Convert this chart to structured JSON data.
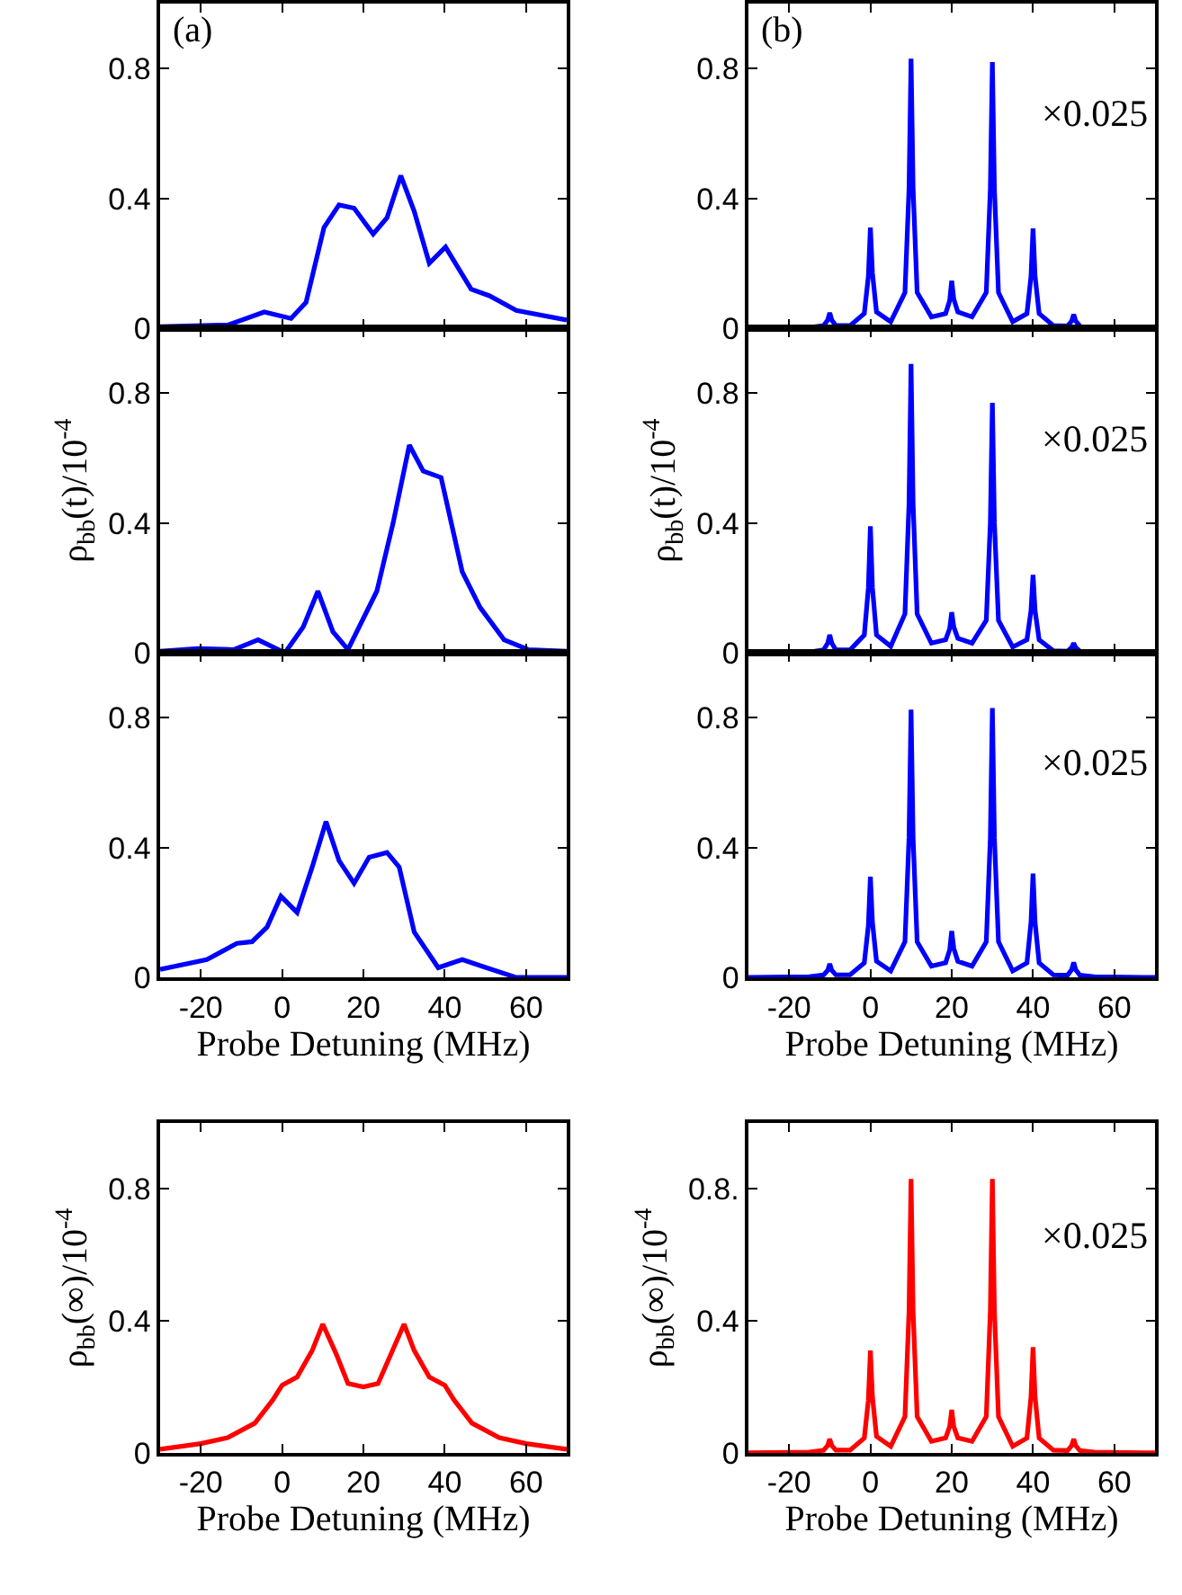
{
  "chart_data": [
    {
      "type": "line",
      "x": [
        -30,
        -13.3,
        -4.4,
        2.2,
        5.9,
        10.3,
        14.0,
        17.7,
        22.4,
        25.8,
        29.2,
        32.5,
        36.2,
        40.2,
        46.5,
        51.0,
        57.6,
        70
      ],
      "series": [
        {
          "color": "#0000ff",
          "values": [
            0.005,
            0.01,
            0.05,
            0.03,
            0.08,
            0.31,
            0.38,
            0.37,
            0.29,
            0.34,
            0.47,
            0.36,
            0.2,
            0.25,
            0.12,
            0.1,
            0.055,
            0.025
          ]
        }
      ],
      "xlim": [
        -30,
        70
      ],
      "ylim": [
        0,
        1
      ],
      "xticks": [
        -20,
        0,
        20,
        40,
        60
      ],
      "yticks": [
        0,
        0.4,
        0.8
      ],
      "tick_labels": "y",
      "annotations": [
        "(a)"
      ]
    },
    {
      "type": "line",
      "x": [
        -30,
        -15,
        -11.5,
        -10.5,
        -10,
        -9.5,
        -8.5,
        -5,
        -1.5,
        -0.5,
        0,
        0.5,
        1.5,
        5,
        8.5,
        9.5,
        10,
        10.5,
        11.5,
        15,
        18.5,
        19.5,
        20,
        20.5,
        21.5,
        25,
        28.5,
        29.5,
        30,
        30.5,
        31.5,
        35,
        38.5,
        39.5,
        40,
        40.5,
        41.5,
        45,
        48.5,
        49.5,
        50,
        50.5,
        51.5
      ],
      "series": [
        {
          "color": "#0000ff",
          "values": [
            0,
            0.002,
            0.008,
            0.025,
            0.047,
            0.025,
            0.008,
            0.008,
            0.045,
            0.16,
            0.31,
            0.17,
            0.05,
            0.02,
            0.11,
            0.43,
            0.83,
            0.43,
            0.11,
            0.035,
            0.045,
            0.085,
            0.146,
            0.09,
            0.05,
            0.035,
            0.11,
            0.43,
            0.82,
            0.43,
            0.11,
            0.02,
            0.045,
            0.16,
            0.307,
            0.16,
            0.045,
            0.008,
            0.007,
            0.022,
            0.042,
            0.022,
            0.007
          ]
        }
      ],
      "xlim": [
        -30,
        70
      ],
      "ylim": [
        0,
        1
      ],
      "xticks": [
        -20,
        0,
        20,
        40,
        60
      ],
      "yticks": [
        0,
        0.4,
        0.8
      ],
      "tick_labels": "y",
      "annotations": [
        "(b)",
        "×0.025"
      ]
    },
    {
      "type": "line",
      "x": [
        -30,
        -20.7,
        -11.8,
        -5.9,
        0.7,
        5.2,
        8.8,
        12.5,
        16.2,
        23.3,
        27.3,
        31.3,
        34.7,
        39.1,
        44.3,
        48.7,
        54.6,
        60.5,
        70
      ],
      "series": [
        {
          "color": "#0000ff",
          "values": [
            0.005,
            0.013,
            0.01,
            0.04,
            0,
            0.08,
            0.19,
            0.065,
            0.01,
            0.19,
            0.4,
            0.64,
            0.56,
            0.54,
            0.25,
            0.14,
            0.04,
            0.01,
            0.005
          ]
        }
      ],
      "xlim": [
        -30,
        70
      ],
      "ylim": [
        0,
        1
      ],
      "xticks": [
        -20,
        0,
        20,
        40,
        60
      ],
      "yticks": [
        0,
        0.4,
        0.8
      ],
      "tick_labels": "y",
      "ylabel": "ρ$_{bb}$(t)/10$^{-4}$"
    },
    {
      "type": "line",
      "x": [
        -30,
        -15,
        -11.5,
        -10.5,
        -10,
        -9.5,
        -8.5,
        -5,
        -1.5,
        -0.5,
        0,
        0.5,
        1.5,
        5,
        8.5,
        9.5,
        10,
        10.5,
        11.5,
        15,
        18.5,
        19.5,
        20,
        20.5,
        21.5,
        25,
        28.5,
        29.5,
        30,
        30.5,
        31.5,
        35,
        38.5,
        39.5,
        40,
        40.5,
        41.5,
        45,
        48.5,
        49.5,
        50,
        50.5,
        51.5
      ],
      "series": [
        {
          "color": "#0000ff",
          "values": [
            0,
            0.002,
            0.009,
            0.03,
            0.055,
            0.03,
            0.009,
            0.009,
            0.055,
            0.2,
            0.39,
            0.2,
            0.055,
            0.02,
            0.12,
            0.46,
            0.89,
            0.46,
            0.12,
            0.03,
            0.04,
            0.075,
            0.125,
            0.08,
            0.045,
            0.03,
            0.1,
            0.4,
            0.77,
            0.4,
            0.1,
            0.018,
            0.04,
            0.13,
            0.24,
            0.13,
            0.04,
            0.006,
            0.005,
            0.016,
            0.03,
            0.016,
            0.005
          ]
        }
      ],
      "xlim": [
        -30,
        70
      ],
      "ylim": [
        0,
        1
      ],
      "xticks": [
        -20,
        0,
        20,
        40,
        60
      ],
      "yticks": [
        0,
        0.4,
        0.8
      ],
      "tick_labels": "y",
      "ylabel": "ρ$_{bb}$(t)/10$^{-4}$",
      "annotations": [
        "×0.025"
      ]
    },
    {
      "type": "line",
      "x": [
        -30,
        -18.5,
        -11.1,
        -7.4,
        -3.7,
        -0.3,
        3.7,
        7.4,
        10.8,
        14.0,
        17.7,
        21.4,
        25.8,
        28.8,
        32.5,
        38.4,
        44.3,
        50.2,
        57.6,
        70
      ],
      "series": [
        {
          "color": "#0000ff",
          "values": [
            0.025,
            0.055,
            0.105,
            0.11,
            0.155,
            0.25,
            0.2,
            0.34,
            0.48,
            0.36,
            0.29,
            0.37,
            0.385,
            0.34,
            0.14,
            0.03,
            0.055,
            0.03,
            0,
            0
          ]
        }
      ],
      "xlim": [
        -30,
        70
      ],
      "ylim": [
        0,
        1
      ],
      "xticks": [
        -20,
        0,
        20,
        40,
        60
      ],
      "yticks": [
        0,
        0.4,
        0.8
      ],
      "xlabel": "Probe Detuning (MHz)"
    },
    {
      "type": "line",
      "x": [
        -30,
        -15,
        -11.5,
        -10.5,
        -10,
        -9.5,
        -8.5,
        -5,
        -1.5,
        -0.5,
        0,
        0.5,
        1.5,
        5,
        8.5,
        9.5,
        10,
        10.5,
        11.5,
        15,
        18.5,
        19.5,
        20,
        20.5,
        21.5,
        25,
        28.5,
        29.5,
        30,
        30.5,
        31.5,
        35,
        38.5,
        39.5,
        40,
        40.5,
        41.5,
        45,
        48.5,
        49.5,
        50,
        50.5,
        51.5,
        55,
        70
      ],
      "series": [
        {
          "color": "#0000ff",
          "values": [
            0,
            0.002,
            0.008,
            0.022,
            0.042,
            0.022,
            0.008,
            0.008,
            0.045,
            0.16,
            0.31,
            0.17,
            0.05,
            0.02,
            0.11,
            0.43,
            0.825,
            0.43,
            0.11,
            0.035,
            0.045,
            0.085,
            0.143,
            0.09,
            0.05,
            0.035,
            0.11,
            0.43,
            0.83,
            0.43,
            0.11,
            0.02,
            0.045,
            0.17,
            0.32,
            0.17,
            0.045,
            0.008,
            0.007,
            0.024,
            0.046,
            0.024,
            0.007,
            0.002,
            0
          ]
        }
      ],
      "xlim": [
        -30,
        70
      ],
      "ylim": [
        0,
        1
      ],
      "xticks": [
        -20,
        0,
        20,
        40,
        60
      ],
      "yticks": [
        0,
        0.4,
        0.8
      ],
      "xlabel": "Probe Detuning (MHz)",
      "annotations": [
        "×0.025"
      ]
    },
    {
      "type": "line",
      "x": [
        -30,
        -20,
        -13.4,
        -6.7,
        -2.3,
        0,
        3.7,
        7.4,
        10,
        13.3,
        16.2,
        20,
        23.6,
        26.8,
        30,
        32.5,
        36.2,
        40,
        42.3,
        46.7,
        53.4,
        60,
        70
      ],
      "series": [
        {
          "color": "#ff0000",
          "values": [
            0.011,
            0.028,
            0.046,
            0.09,
            0.16,
            0.205,
            0.23,
            0.31,
            0.39,
            0.3,
            0.21,
            0.2,
            0.21,
            0.3,
            0.39,
            0.31,
            0.23,
            0.205,
            0.16,
            0.09,
            0.046,
            0.028,
            0.011
          ]
        }
      ],
      "xlim": [
        -30,
        70
      ],
      "ylim": [
        0,
        1
      ],
      "xticks": [
        -20,
        0,
        20,
        40,
        60
      ],
      "yticks": [
        0,
        0.4,
        0.8
      ],
      "xlabel": "Probe Detuning (MHz)",
      "ylabel": "ρ$_{bb}$(∞)/10$^{-4}$"
    },
    {
      "type": "line",
      "x": [
        -30,
        -15,
        -11.5,
        -10.5,
        -10,
        -9.5,
        -8.5,
        -5,
        -1.5,
        -0.5,
        0,
        0.5,
        1.5,
        5,
        8.5,
        9.5,
        10,
        10.5,
        11.5,
        15,
        18.5,
        19.5,
        20,
        20.5,
        21.5,
        25,
        28.5,
        29.5,
        30,
        30.5,
        31.5,
        35,
        38.5,
        39.5,
        40,
        40.5,
        41.5,
        45,
        48.5,
        49.5,
        50,
        50.5,
        51.5,
        55,
        70
      ],
      "series": [
        {
          "color": "#ff0000",
          "values": [
            0,
            0.002,
            0.008,
            0.022,
            0.042,
            0.022,
            0.008,
            0.008,
            0.045,
            0.16,
            0.31,
            0.17,
            0.05,
            0.02,
            0.11,
            0.43,
            0.83,
            0.43,
            0.11,
            0.035,
            0.045,
            0.08,
            0.13,
            0.08,
            0.045,
            0.035,
            0.11,
            0.43,
            0.83,
            0.43,
            0.11,
            0.02,
            0.045,
            0.17,
            0.32,
            0.17,
            0.045,
            0.008,
            0.007,
            0.022,
            0.042,
            0.022,
            0.007,
            0.002,
            0
          ]
        }
      ],
      "xlim": [
        -30,
        70
      ],
      "ylim": [
        0,
        1
      ],
      "xticks": [
        -20,
        0,
        20,
        40,
        60
      ],
      "yticks": [
        0,
        {
          "value": 0.4,
          "label": "0.4"
        },
        {
          "value": 0.8,
          "label": "0.8."
        }
      ],
      "xlabel": "Probe Detuning (MHz)",
      "ylabel": "ρ$_{bb}$(∞)/10$^{-4}$",
      "annotations": [
        "×0.025"
      ]
    }
  ]
}
